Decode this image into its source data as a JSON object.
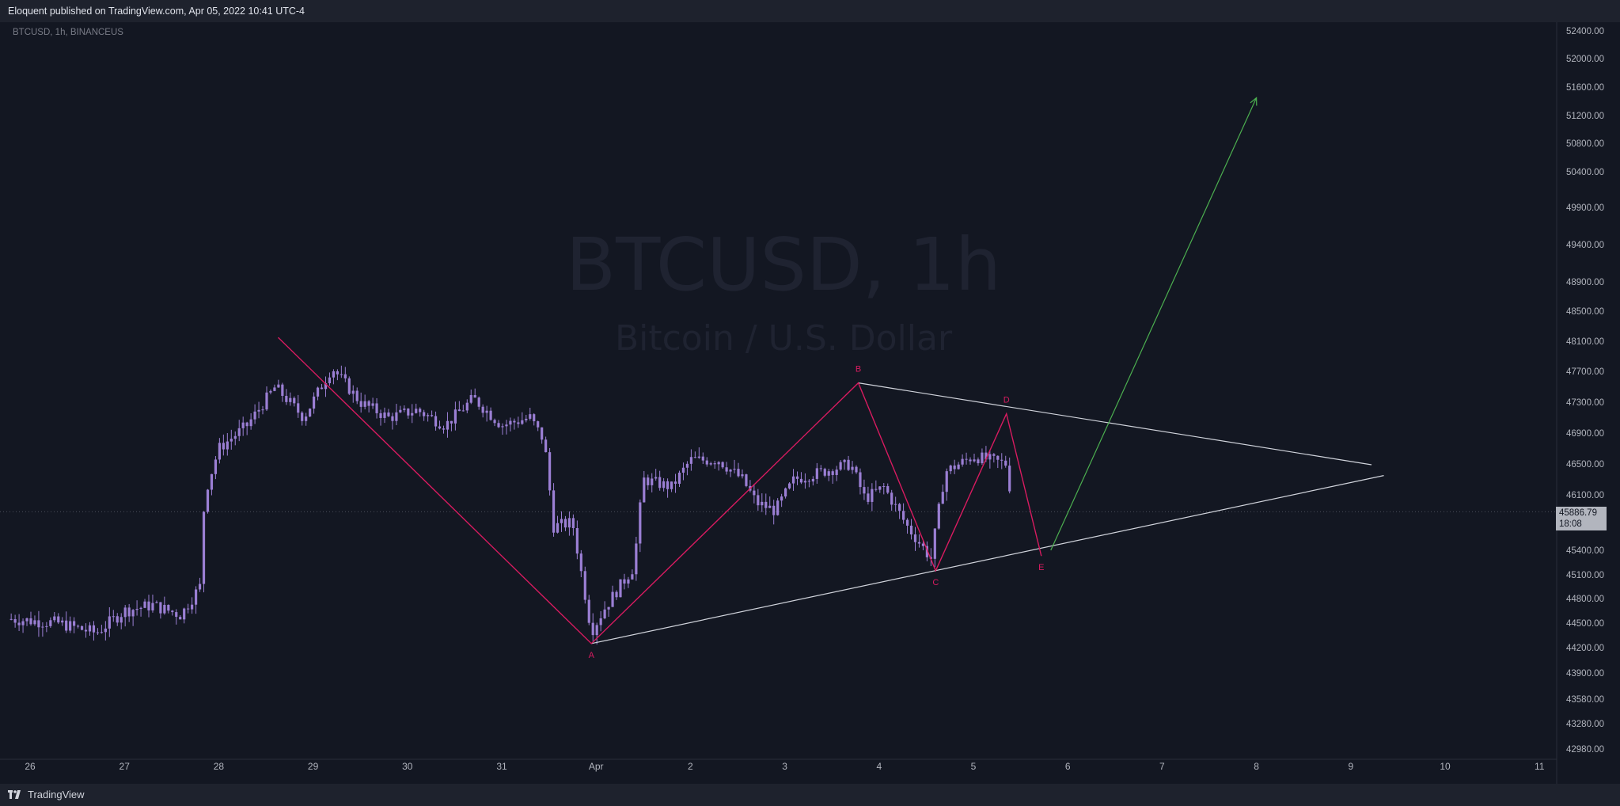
{
  "header": {
    "publish_text": "Eloquent published on TradingView.com, Apr 05, 2022 10:41 UTC-4"
  },
  "symbol_info": "BTCUSD, 1h, BINANCEUS",
  "watermark": {
    "symbol": "BTCUSD, 1h",
    "description": "Bitcoin / U.S. Dollar"
  },
  "last_price": {
    "value": "45886.79",
    "countdown": "18:08"
  },
  "footer": {
    "brand": "TradingView"
  },
  "colors": {
    "background": "#131722",
    "candle": "#9b7fd4",
    "pattern": "#d81b60",
    "trendline": "#d1d4dc",
    "projection": "#4caf50",
    "axis_text": "#b2b5be"
  },
  "chart_data": {
    "type": "candlestick",
    "symbol": "BTCUSD",
    "timeframe": "1h",
    "exchange": "BINANCEUS",
    "x_ticks": [
      "26",
      "27",
      "28",
      "29",
      "30",
      "31",
      "Apr",
      "2",
      "3",
      "4",
      "5",
      "6",
      "7",
      "8",
      "9",
      "10",
      "11"
    ],
    "y_ticks": [
      "52400.00",
      "52000.00",
      "51600.00",
      "51200.00",
      "50800.00",
      "50400.00",
      "49900.00",
      "49400.00",
      "48900.00",
      "48500.00",
      "48100.00",
      "47700.00",
      "47300.00",
      "46900.00",
      "46500.00",
      "46100.00",
      "45400.00",
      "45100.00",
      "44800.00",
      "44500.00",
      "44200.00",
      "43900.00",
      "43580.00",
      "43280.00",
      "42980.00"
    ],
    "close_path": [
      {
        "day": -0.2,
        "price": 44550
      },
      {
        "day": 0.3,
        "price": 44500
      },
      {
        "day": 0.7,
        "price": 44380
      },
      {
        "day": 1.0,
        "price": 44650
      },
      {
        "day": 1.3,
        "price": 44720
      },
      {
        "day": 1.6,
        "price": 44600
      },
      {
        "day": 1.8,
        "price": 44950
      },
      {
        "day": 1.85,
        "price": 46100
      },
      {
        "day": 2.0,
        "price": 46700
      },
      {
        "day": 2.3,
        "price": 47000
      },
      {
        "day": 2.6,
        "price": 47500
      },
      {
        "day": 2.9,
        "price": 47100
      },
      {
        "day": 3.2,
        "price": 47750
      },
      {
        "day": 3.5,
        "price": 47300
      },
      {
        "day": 3.8,
        "price": 47100
      },
      {
        "day": 4.1,
        "price": 47200
      },
      {
        "day": 4.4,
        "price": 47000
      },
      {
        "day": 4.7,
        "price": 47350
      },
      {
        "day": 5.0,
        "price": 47000
      },
      {
        "day": 5.3,
        "price": 47100
      },
      {
        "day": 5.45,
        "price": 46800
      },
      {
        "day": 5.55,
        "price": 45700
      },
      {
        "day": 5.75,
        "price": 45750
      },
      {
        "day": 5.95,
        "price": 44400
      },
      {
        "day": 6.1,
        "price": 44700
      },
      {
        "day": 6.4,
        "price": 45200
      },
      {
        "day": 6.5,
        "price": 46300
      },
      {
        "day": 6.8,
        "price": 46200
      },
      {
        "day": 7.0,
        "price": 46550
      },
      {
        "day": 7.3,
        "price": 46550
      },
      {
        "day": 7.55,
        "price": 46300
      },
      {
        "day": 7.7,
        "price": 46000
      },
      {
        "day": 7.9,
        "price": 45900
      },
      {
        "day": 8.1,
        "price": 46300
      },
      {
        "day": 8.4,
        "price": 46400
      },
      {
        "day": 8.7,
        "price": 46500
      },
      {
        "day": 8.85,
        "price": 46050
      },
      {
        "day": 9.05,
        "price": 46200
      },
      {
        "day": 9.3,
        "price": 45700
      },
      {
        "day": 9.55,
        "price": 45300
      },
      {
        "day": 9.7,
        "price": 46400
      },
      {
        "day": 10.0,
        "price": 46600
      },
      {
        "day": 10.35,
        "price": 46500
      },
      {
        "day": 10.42,
        "price": 45890
      }
    ],
    "pattern_points": [
      {
        "label": "",
        "day": 2.63,
        "price": 48150
      },
      {
        "label": "A",
        "day": 5.95,
        "price": 44250
      },
      {
        "label": "B",
        "day": 8.78,
        "price": 47550
      },
      {
        "label": "C",
        "day": 9.6,
        "price": 45150
      },
      {
        "label": "D",
        "day": 10.35,
        "price": 47150
      },
      {
        "label": "E",
        "day": 10.72,
        "price": 45330
      }
    ],
    "trendlines": [
      {
        "name": "lower",
        "from": {
          "day": 5.95,
          "price": 44250
        },
        "to": {
          "day": 14.35,
          "price": 46350
        }
      },
      {
        "name": "upper",
        "from": {
          "day": 8.78,
          "price": 47550
        },
        "to": {
          "day": 14.22,
          "price": 46490
        }
      }
    ],
    "projection_arrow": {
      "from": {
        "day": 10.82,
        "price": 45400
      },
      "to": {
        "day": 13.0,
        "price": 51450
      }
    },
    "last_price": 45886.79
  }
}
